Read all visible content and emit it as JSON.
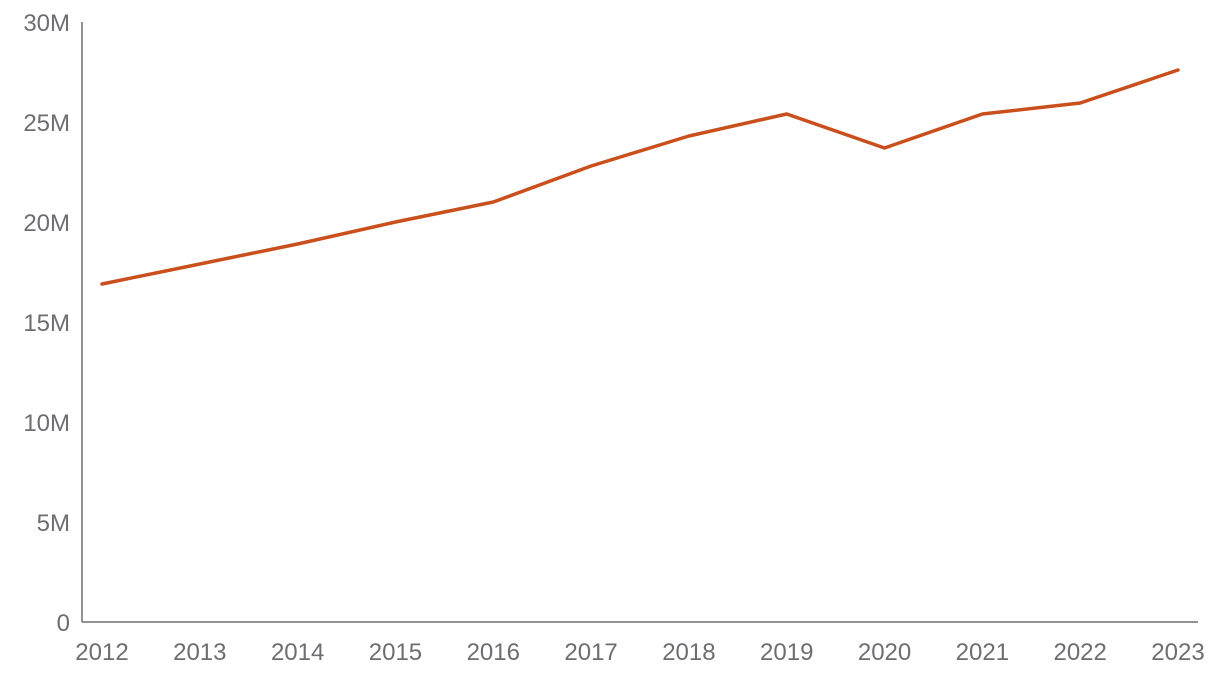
{
  "chart_data": {
    "type": "line",
    "title": "",
    "xlabel": "",
    "ylabel": "",
    "x": [
      "2012",
      "2013",
      "2014",
      "2015",
      "2016",
      "2017",
      "2018",
      "2019",
      "2020",
      "2021",
      "2022",
      "2023"
    ],
    "series": [
      {
        "values": [
          16900000,
          17900000,
          18900000,
          20000000,
          21000000,
          22800000,
          24300000,
          25400000,
          23700000,
          25400000,
          25950000,
          27600000
        ],
        "color": "#c9501c"
      }
    ],
    "ylim": [
      0,
      30000000
    ],
    "y_ticks": [
      {
        "value": 0,
        "label": "0"
      },
      {
        "value": 5000000,
        "label": "5M"
      },
      {
        "value": 10000000,
        "label": "10M"
      },
      {
        "value": 15000000,
        "label": "15M"
      },
      {
        "value": 20000000,
        "label": "20M"
      },
      {
        "value": 25000000,
        "label": "25M"
      },
      {
        "value": 30000000,
        "label": "30M"
      }
    ],
    "grid": false,
    "legend": "none"
  }
}
